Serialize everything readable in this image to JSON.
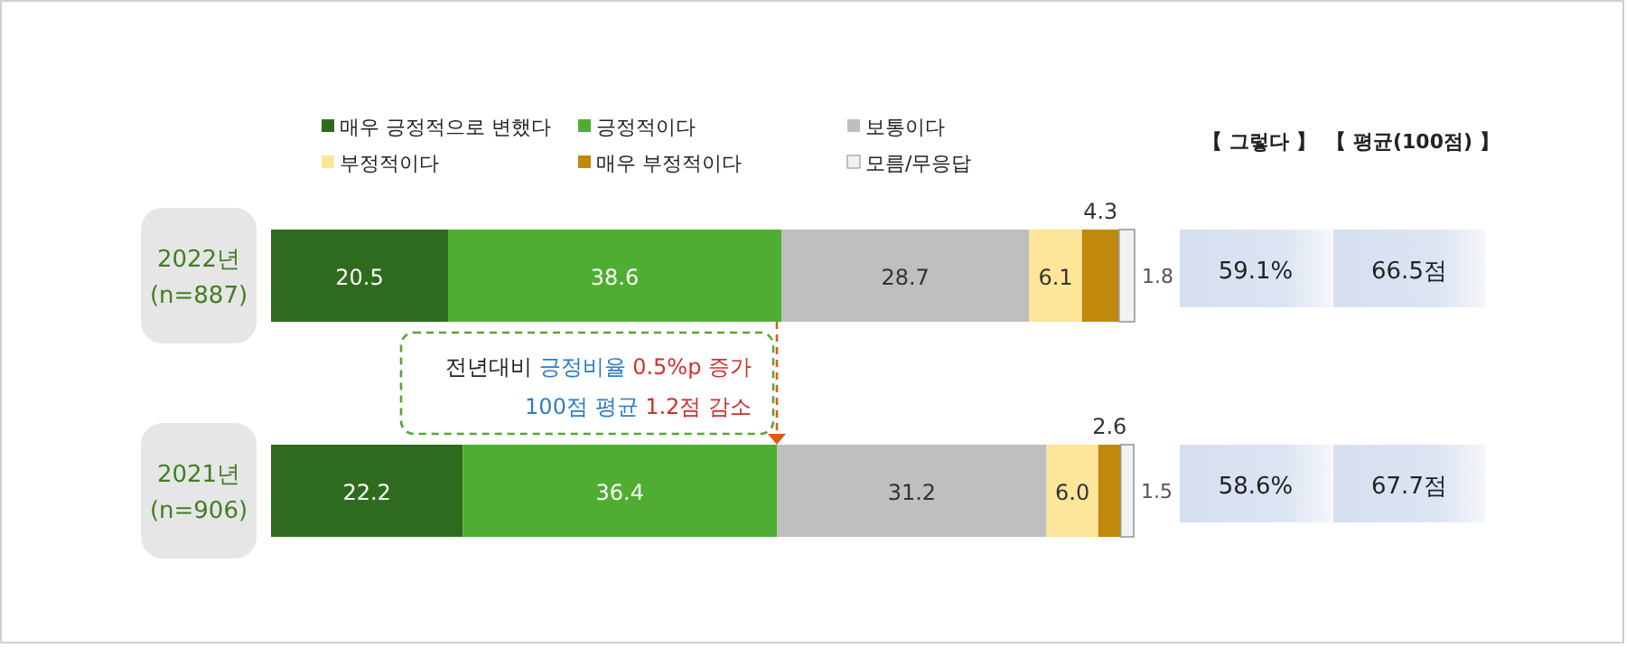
{
  "chart_data": {
    "type": "bar",
    "orientation": "horizontal",
    "stacked": true,
    "categories": [
      "2022년\n(n=887)",
      "2021년\n(n=906)"
    ],
    "series": [
      {
        "name": "매우 긍정적으로 변했다",
        "color": "#2f6b1e",
        "values": [
          20.5,
          22.2
        ],
        "value_labels": [
          "20.5",
          "22.2"
        ]
      },
      {
        "name": "긍정적이다",
        "color": "#4fae32",
        "values": [
          38.6,
          36.4
        ],
        "value_labels": [
          "38.6",
          "36.4"
        ]
      },
      {
        "name": "보통이다",
        "color": "#bfbfbf",
        "values": [
          28.7,
          31.2
        ],
        "value_labels": [
          "28.7",
          "31.2"
        ]
      },
      {
        "name": "부정적이다",
        "color": "#fde59a",
        "values": [
          6.1,
          6.0
        ],
        "value_labels": [
          "6.1",
          "6.0"
        ]
      },
      {
        "name": "매우 부정적이다",
        "color": "#bf8a0c",
        "values": [
          4.3,
          2.6
        ],
        "value_labels": [
          "4.3",
          "2.6"
        ]
      },
      {
        "name": "모름/무응답",
        "color": "#f2f2f2",
        "values": [
          1.8,
          1.5
        ],
        "value_labels": [
          "1.8",
          "1.5"
        ]
      }
    ],
    "legend": "top",
    "annotations": [
      "【 그렇다 】",
      "【 평균(100점) 】",
      "59.1%",
      "66.5점",
      "58.6%",
      "67.7점",
      "전년대비 긍정비율 0.5%p 증가",
      "100점 평균 1.2점 감소"
    ]
  }
}
